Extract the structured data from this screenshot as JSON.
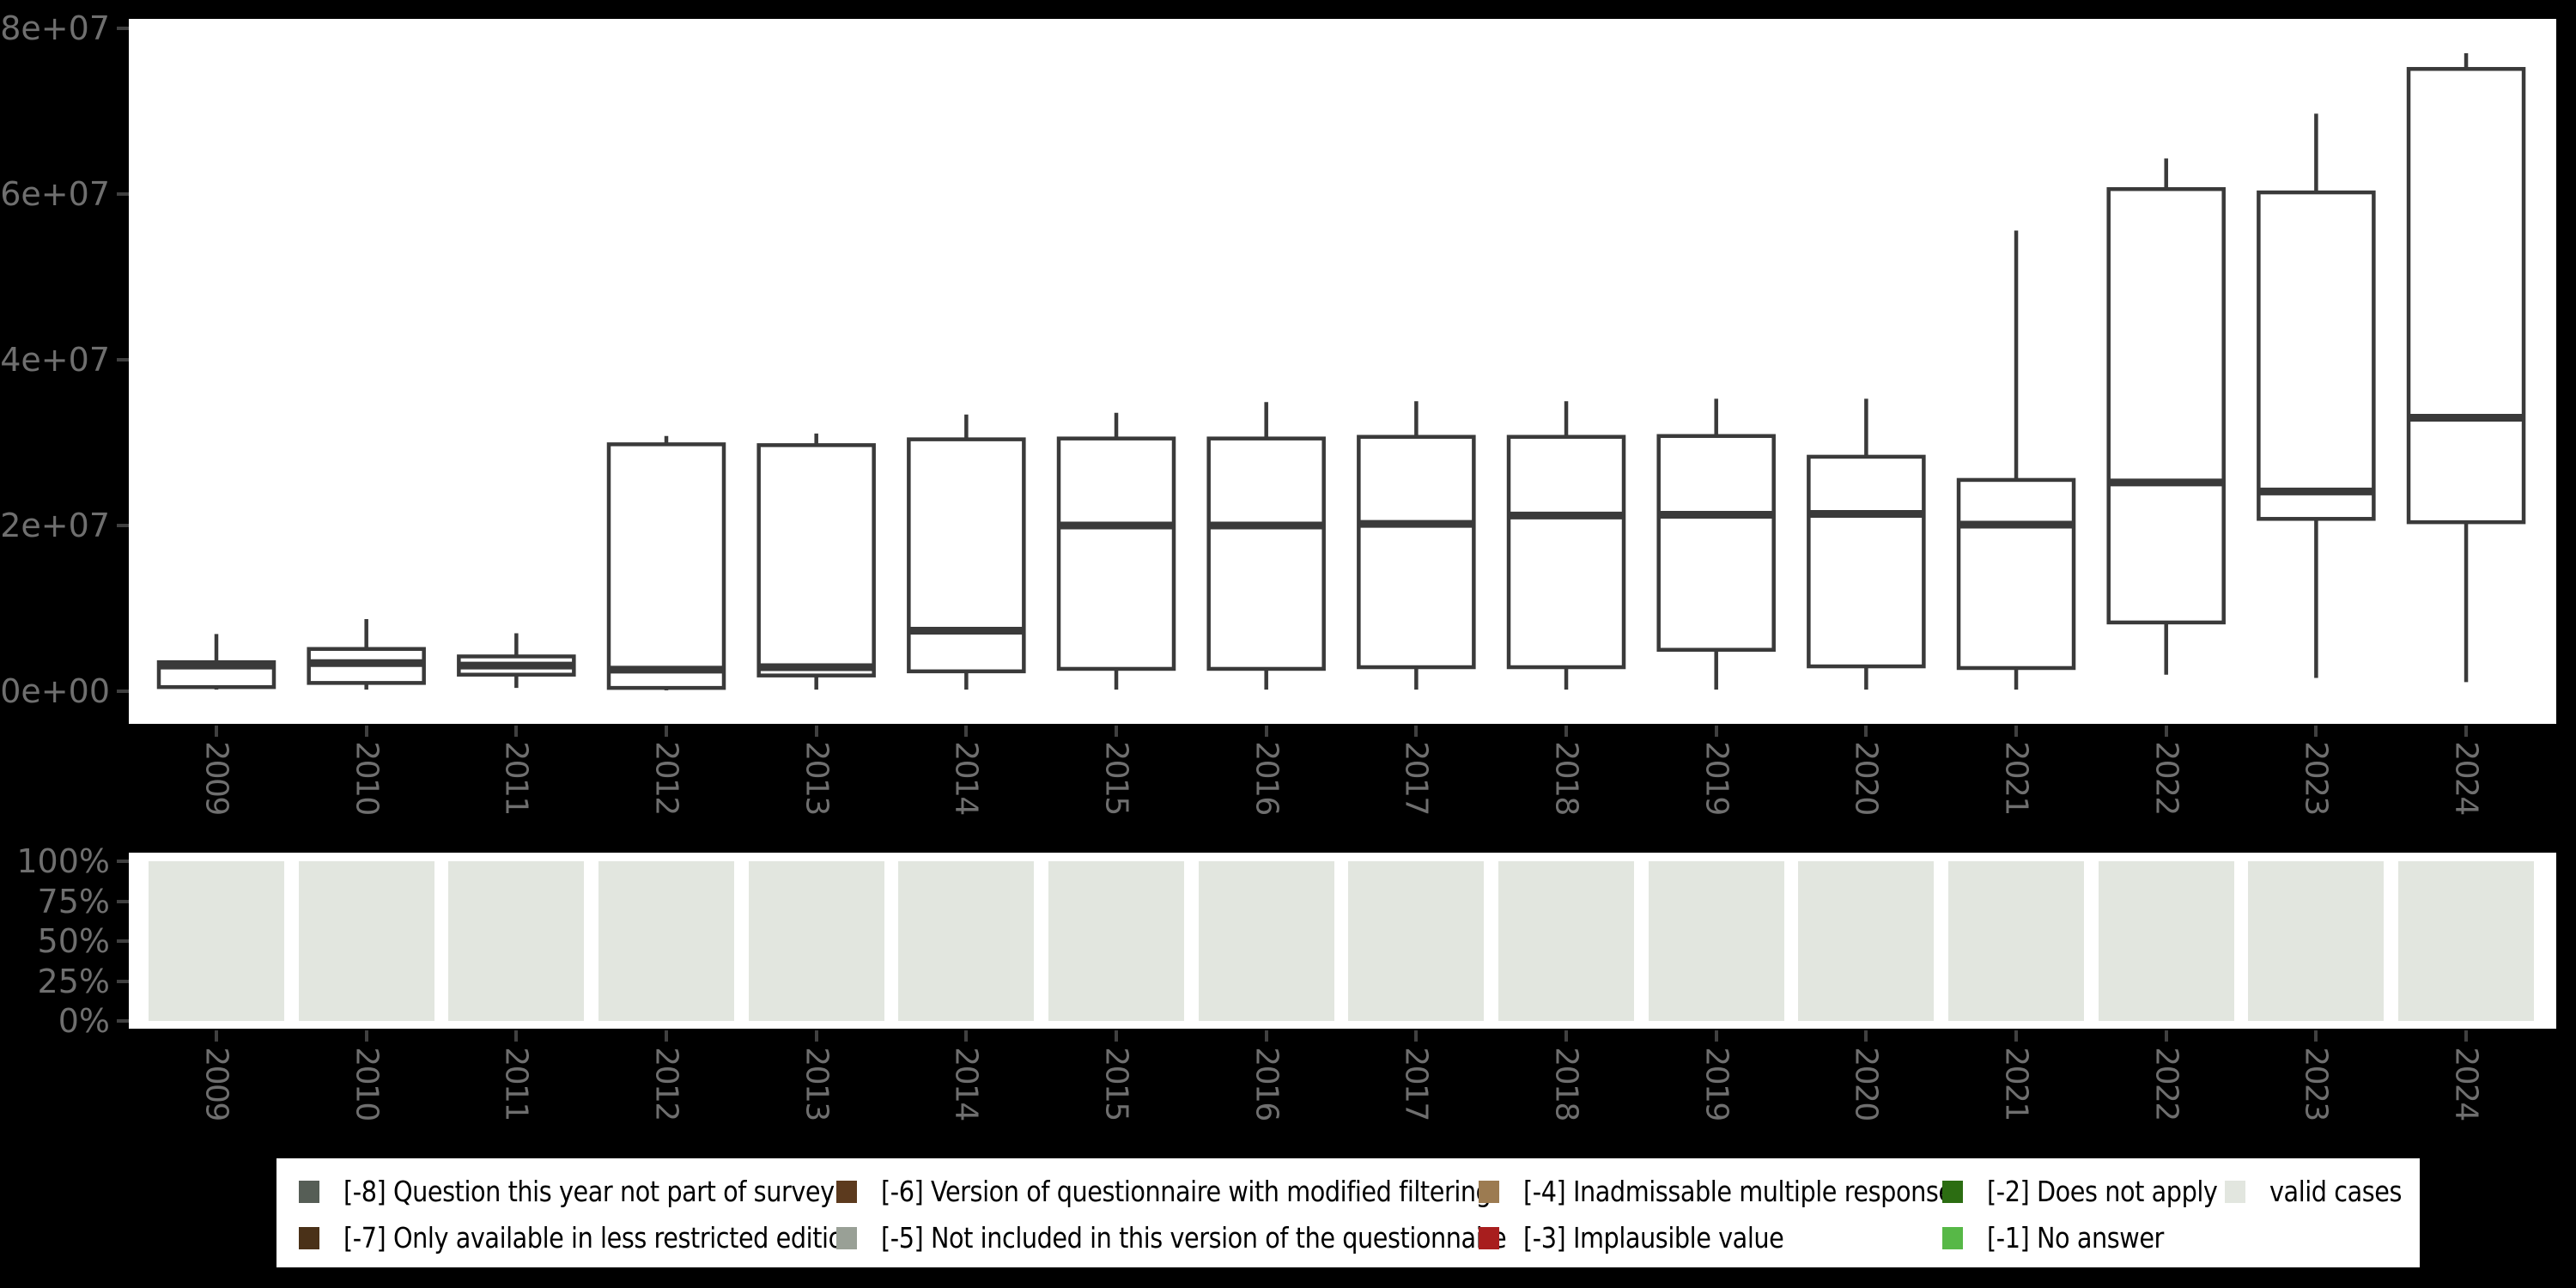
{
  "colors": {
    "background": "#000000",
    "panel": "#ffffff",
    "box_stroke": "#3a3a3a",
    "axis_label_text": "#6f6f6f",
    "tick_mark": "#404040",
    "legend_bg": "#ffffff",
    "legend_text": "#000000",
    "valid_fill": "#e2e6df"
  },
  "years": [
    "2009",
    "2010",
    "2011",
    "2012",
    "2013",
    "2014",
    "2015",
    "2016",
    "2017",
    "2018",
    "2019",
    "2020",
    "2021",
    "2022",
    "2023",
    "2024"
  ],
  "top_axis": {
    "tick_labels": [
      "0e+00",
      "2e+07",
      "4e+07",
      "6e+07",
      "8e+07"
    ],
    "tick_values": [
      0,
      20000000,
      40000000,
      60000000,
      80000000
    ]
  },
  "bottom_axis": {
    "tick_labels": [
      "0%",
      "25%",
      "50%",
      "75%",
      "100%"
    ],
    "tick_values": [
      0,
      25,
      50,
      75,
      100
    ]
  },
  "chart_data": [
    {
      "type": "boxplot",
      "title": "",
      "xlabel": "",
      "ylabel": "",
      "categories": [
        "2009",
        "2010",
        "2011",
        "2012",
        "2013",
        "2014",
        "2015",
        "2016",
        "2017",
        "2018",
        "2019",
        "2020",
        "2021",
        "2022",
        "2023",
        "2024"
      ],
      "ylim": [
        -5000000,
        81500000
      ],
      "yticks": [
        0,
        20000000,
        40000000,
        60000000,
        80000000
      ],
      "grid": false,
      "series": [
        {
          "year": "2009",
          "whisker_low": 200000,
          "q1": 500000,
          "median": 3100000,
          "q3": 3500000,
          "whisker_high": 6900000
        },
        {
          "year": "2010",
          "whisker_low": 200000,
          "q1": 1000000,
          "median": 3400000,
          "q3": 5100000,
          "whisker_high": 8700000
        },
        {
          "year": "2011",
          "whisker_low": 400000,
          "q1": 2000000,
          "median": 3100000,
          "q3": 4200000,
          "whisker_high": 7000000
        },
        {
          "year": "2012",
          "whisker_low": 100000,
          "q1": 400000,
          "median": 2600000,
          "q3": 29800000,
          "whisker_high": 30800000
        },
        {
          "year": "2013",
          "whisker_low": 200000,
          "q1": 1900000,
          "median": 2900000,
          "q3": 29700000,
          "whisker_high": 31100000
        },
        {
          "year": "2014",
          "whisker_low": 200000,
          "q1": 2400000,
          "median": 7300000,
          "q3": 30400000,
          "whisker_high": 33400000
        },
        {
          "year": "2015",
          "whisker_low": 200000,
          "q1": 2700000,
          "median": 20000000,
          "q3": 30500000,
          "whisker_high": 33600000
        },
        {
          "year": "2016",
          "whisker_low": 200000,
          "q1": 2700000,
          "median": 20000000,
          "q3": 30500000,
          "whisker_high": 34900000
        },
        {
          "year": "2017",
          "whisker_low": 200000,
          "q1": 2900000,
          "median": 20200000,
          "q3": 30700000,
          "whisker_high": 35000000
        },
        {
          "year": "2018",
          "whisker_low": 200000,
          "q1": 2900000,
          "median": 21200000,
          "q3": 30700000,
          "whisker_high": 35000000
        },
        {
          "year": "2019",
          "whisker_low": 200000,
          "q1": 5000000,
          "median": 21300000,
          "q3": 30800000,
          "whisker_high": 35300000
        },
        {
          "year": "2020",
          "whisker_low": 200000,
          "q1": 3000000,
          "median": 21400000,
          "q3": 28300000,
          "whisker_high": 35300000
        },
        {
          "year": "2021",
          "whisker_low": 200000,
          "q1": 2800000,
          "median": 20100000,
          "q3": 25500000,
          "whisker_high": 55600000
        },
        {
          "year": "2022",
          "whisker_low": 2000000,
          "q1": 8300000,
          "median": 25200000,
          "q3": 60600000,
          "whisker_high": 64300000
        },
        {
          "year": "2023",
          "whisker_low": 1600000,
          "q1": 20800000,
          "median": 24100000,
          "q3": 60200000,
          "whisker_high": 69700000
        },
        {
          "year": "2024",
          "whisker_low": 1100000,
          "q1": 20400000,
          "median": 33000000,
          "q3": 75100000,
          "whisker_high": 77000000
        }
      ]
    },
    {
      "type": "bar",
      "stacked": true,
      "unit": "percent",
      "title": "",
      "categories": [
        "2009",
        "2010",
        "2011",
        "2012",
        "2013",
        "2014",
        "2015",
        "2016",
        "2017",
        "2018",
        "2019",
        "2020",
        "2021",
        "2022",
        "2023",
        "2024"
      ],
      "ylim": [
        0,
        100
      ],
      "yticks_labels": [
        "0%",
        "25%",
        "50%",
        "75%",
        "100%"
      ],
      "series": [
        {
          "name": "valid cases",
          "color": "#e2e6df",
          "values": [
            100,
            100,
            100,
            100,
            100,
            100,
            100,
            100,
            100,
            100,
            100,
            100,
            100,
            100,
            100,
            100
          ]
        }
      ]
    }
  ],
  "legend": {
    "rows": [
      [
        {
          "code": "-8",
          "label": "[-8] Question this year not part of survey",
          "color": "#565e56"
        },
        {
          "code": "-6",
          "label": "[-6] Version of questionnaire with modified filtering",
          "color": "#5c3a1e"
        },
        {
          "code": "-4",
          "label": "[-4] Inadmissable multiple response",
          "color": "#9c7b51"
        },
        {
          "code": "-2",
          "label": "[-2] Does not apply",
          "color": "#2c6d12"
        },
        {
          "code": "valid",
          "label": "valid cases",
          "color": "#e2e6df"
        }
      ],
      [
        {
          "code": "-7",
          "label": "[-7] Only available in less restricted edition",
          "color": "#4a3118"
        },
        {
          "code": "-5",
          "label": "[-5] Not included in this version of the questionnaire",
          "color": "#99a096"
        },
        {
          "code": "-3",
          "label": "[-3] Implausible value",
          "color": "#a81e1e"
        },
        {
          "code": "-1",
          "label": "[-1] No answer",
          "color": "#57b847"
        }
      ]
    ]
  }
}
